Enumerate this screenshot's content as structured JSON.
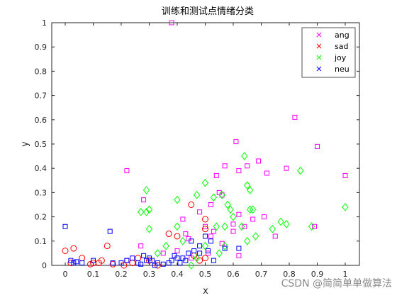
{
  "chart_data": {
    "type": "scatter",
    "title": "训练和测试点情绪分类",
    "xlabel": "x",
    "ylabel": "y",
    "xlim": [
      -0.1,
      1.05
    ],
    "ylim": [
      0,
      1
    ],
    "xticks": [
      "0",
      "0.1",
      "0.2",
      "0.3",
      "0.4",
      "0.5",
      "0.6",
      "0.7",
      "0.8",
      "0.9",
      "1"
    ],
    "yticks": [
      "0",
      "0.1",
      "0.2",
      "0.3",
      "0.4",
      "0.5",
      "0.6",
      "0.7",
      "0.8",
      "0.9",
      "1"
    ],
    "grid": false,
    "legend_position": "top-right",
    "legend": [
      {
        "name": "ang",
        "marker": "x",
        "color": "#ff00ff"
      },
      {
        "name": "sad",
        "marker": "x",
        "color": "#ff0000"
      },
      {
        "name": "joy",
        "marker": "x",
        "color": "#00ff00"
      },
      {
        "name": "neu",
        "marker": "x",
        "color": "#0000ff"
      }
    ],
    "series": [
      {
        "name": "ang",
        "marker": "square",
        "color": "#ff00ff",
        "points": [
          [
            0.38,
            1.0
          ],
          [
            0.82,
            0.61
          ],
          [
            0.61,
            0.51
          ],
          [
            0.9,
            0.49
          ],
          [
            0.22,
            0.39
          ],
          [
            0.54,
            0.37
          ],
          [
            0.57,
            0.41
          ],
          [
            0.65,
            0.41
          ],
          [
            0.69,
            0.43
          ],
          [
            0.72,
            0.38
          ],
          [
            0.62,
            0.39
          ],
          [
            0.79,
            0.4
          ],
          [
            1.0,
            0.37
          ],
          [
            0.52,
            0.25
          ],
          [
            0.56,
            0.29
          ],
          [
            0.42,
            0.19
          ],
          [
            0.48,
            0.22
          ],
          [
            0.52,
            0.12
          ],
          [
            0.53,
            0.14
          ],
          [
            0.5,
            0.16
          ],
          [
            0.44,
            0.11
          ],
          [
            0.6,
            0.14
          ],
          [
            0.64,
            0.16
          ],
          [
            0.67,
            0.19
          ],
          [
            0.71,
            0.2
          ],
          [
            0.75,
            0.12
          ],
          [
            0.62,
            0.21
          ],
          [
            0.6,
            0.17
          ],
          [
            0.43,
            0.13
          ],
          [
            0.35,
            0.05
          ],
          [
            0.27,
            0.08
          ],
          [
            0.28,
            0.27
          ],
          [
            0.55,
            0.3
          ],
          [
            0.89,
            0.16
          ],
          [
            0.62,
            0.04
          ],
          [
            0.56,
            0.09
          ],
          [
            0.51,
            0.05
          ],
          [
            0.45,
            0.03
          ],
          [
            0.4,
            0.06
          ],
          [
            0.22,
            0.02
          ]
        ]
      },
      {
        "name": "sad",
        "marker": "circle",
        "color": "#ff0000",
        "points": [
          [
            0.0,
            0.06
          ],
          [
            0.03,
            0.07
          ],
          [
            0.06,
            0.03
          ],
          [
            0.02,
            0.01
          ],
          [
            0.1,
            0.01
          ],
          [
            0.13,
            0.02
          ],
          [
            0.15,
            0.08
          ],
          [
            0.12,
            0.01
          ],
          [
            0.17,
            0.005
          ],
          [
            0.21,
            0.0
          ],
          [
            0.37,
            0.13
          ],
          [
            0.4,
            0.12
          ],
          [
            0.45,
            0.25
          ],
          [
            0.5,
            0.19
          ],
          [
            0.5,
            0.15
          ],
          [
            0.3,
            0.02
          ],
          [
            0.33,
            0.0
          ],
          [
            0.48,
            0.02
          ],
          [
            0.46,
            0.04
          ],
          [
            0.5,
            0.03
          ],
          [
            0.26,
            0.03
          ],
          [
            0.24,
            0.01
          ],
          [
            0.09,
            0.005
          ]
        ]
      },
      {
        "name": "joy",
        "marker": "diamond",
        "color": "#00ff00",
        "points": [
          [
            0.29,
            0.31
          ],
          [
            0.29,
            0.22
          ],
          [
            0.3,
            0.23
          ],
          [
            0.27,
            0.22
          ],
          [
            0.4,
            0.27
          ],
          [
            0.5,
            0.34
          ],
          [
            0.47,
            0.29
          ],
          [
            0.53,
            0.28
          ],
          [
            0.56,
            0.29
          ],
          [
            0.58,
            0.25
          ],
          [
            0.59,
            0.23
          ],
          [
            0.6,
            0.2
          ],
          [
            0.64,
            0.45
          ],
          [
            0.65,
            0.33
          ],
          [
            0.66,
            0.31
          ],
          [
            0.66,
            0.23
          ],
          [
            0.67,
            0.23
          ],
          [
            0.63,
            0.16
          ],
          [
            0.54,
            0.16
          ],
          [
            0.57,
            0.16
          ],
          [
            0.65,
            0.1
          ],
          [
            0.68,
            0.12
          ],
          [
            0.74,
            0.15
          ],
          [
            0.77,
            0.18
          ],
          [
            0.79,
            0.17
          ],
          [
            0.84,
            0.39
          ],
          [
            0.88,
            0.16
          ],
          [
            1.0,
            0.24
          ],
          [
            0.3,
            0.15
          ],
          [
            0.33,
            0.05
          ],
          [
            0.4,
            0.16
          ],
          [
            0.36,
            0.08
          ],
          [
            0.42,
            0.1
          ],
          [
            0.47,
            0.03
          ],
          [
            0.55,
            0.05
          ],
          [
            0.57,
            0.08
          ],
          [
            0.45,
            0.0
          ],
          [
            0.5,
            0.08
          ]
        ]
      },
      {
        "name": "neu",
        "marker": "square",
        "color": "#0000ff",
        "points": [
          [
            0.0,
            0.16
          ],
          [
            0.16,
            0.14
          ],
          [
            0.02,
            0.02
          ],
          [
            0.03,
            0.01
          ],
          [
            0.04,
            0.015
          ],
          [
            0.06,
            0.01
          ],
          [
            0.1,
            0.02
          ],
          [
            0.17,
            0.01
          ],
          [
            0.2,
            0.01
          ],
          [
            0.22,
            0.02
          ],
          [
            0.24,
            0.03
          ],
          [
            0.26,
            0.01
          ],
          [
            0.28,
            0.04
          ],
          [
            0.29,
            0.02
          ],
          [
            0.3,
            0.03
          ],
          [
            0.31,
            0.02
          ],
          [
            0.33,
            0.01
          ],
          [
            0.35,
            0.005
          ],
          [
            0.37,
            0.01
          ],
          [
            0.38,
            0.02
          ],
          [
            0.39,
            0.04
          ],
          [
            0.4,
            0.03
          ],
          [
            0.41,
            0.01
          ],
          [
            0.42,
            0.03
          ],
          [
            0.43,
            0.02
          ],
          [
            0.44,
            0.05
          ],
          [
            0.46,
            0.06
          ],
          [
            0.48,
            0.05
          ],
          [
            0.5,
            0.12
          ],
          [
            0.51,
            0.06
          ],
          [
            0.52,
            0.1
          ],
          [
            0.57,
            0.07
          ],
          [
            0.62,
            0.07
          ],
          [
            0.27,
            0.005
          ],
          [
            0.32,
            0.0
          ],
          [
            0.45,
            0.1
          ],
          [
            0.53,
            0.02
          ],
          [
            0.48,
            0.08
          ]
        ]
      }
    ]
  },
  "watermark": "CSDN @简简单单做算法"
}
